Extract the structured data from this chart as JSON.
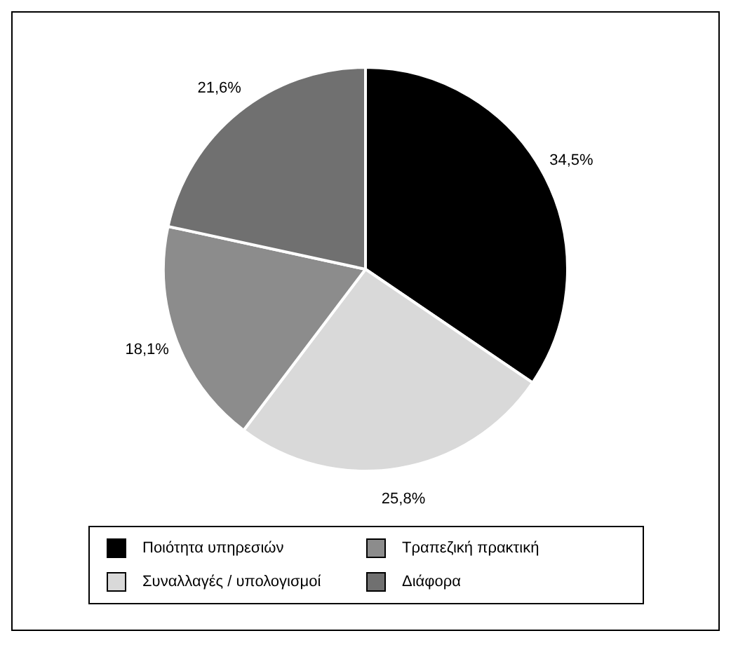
{
  "chart_data": {
    "type": "pie",
    "categories": [
      "Ποιότητα υπηρεσιών",
      "Συναλλαγές / υπολογισμοί",
      "Τραπεζική πρακτική",
      "Διάφορα"
    ],
    "values": [
      34.5,
      25.8,
      18.1,
      21.6
    ],
    "value_labels": [
      "34,5%",
      "25,8%",
      "18,1%",
      "21,6%"
    ],
    "colors": [
      "#000000",
      "#d9d9d9",
      "#8c8c8c",
      "#707070"
    ],
    "legend": "bottom"
  }
}
